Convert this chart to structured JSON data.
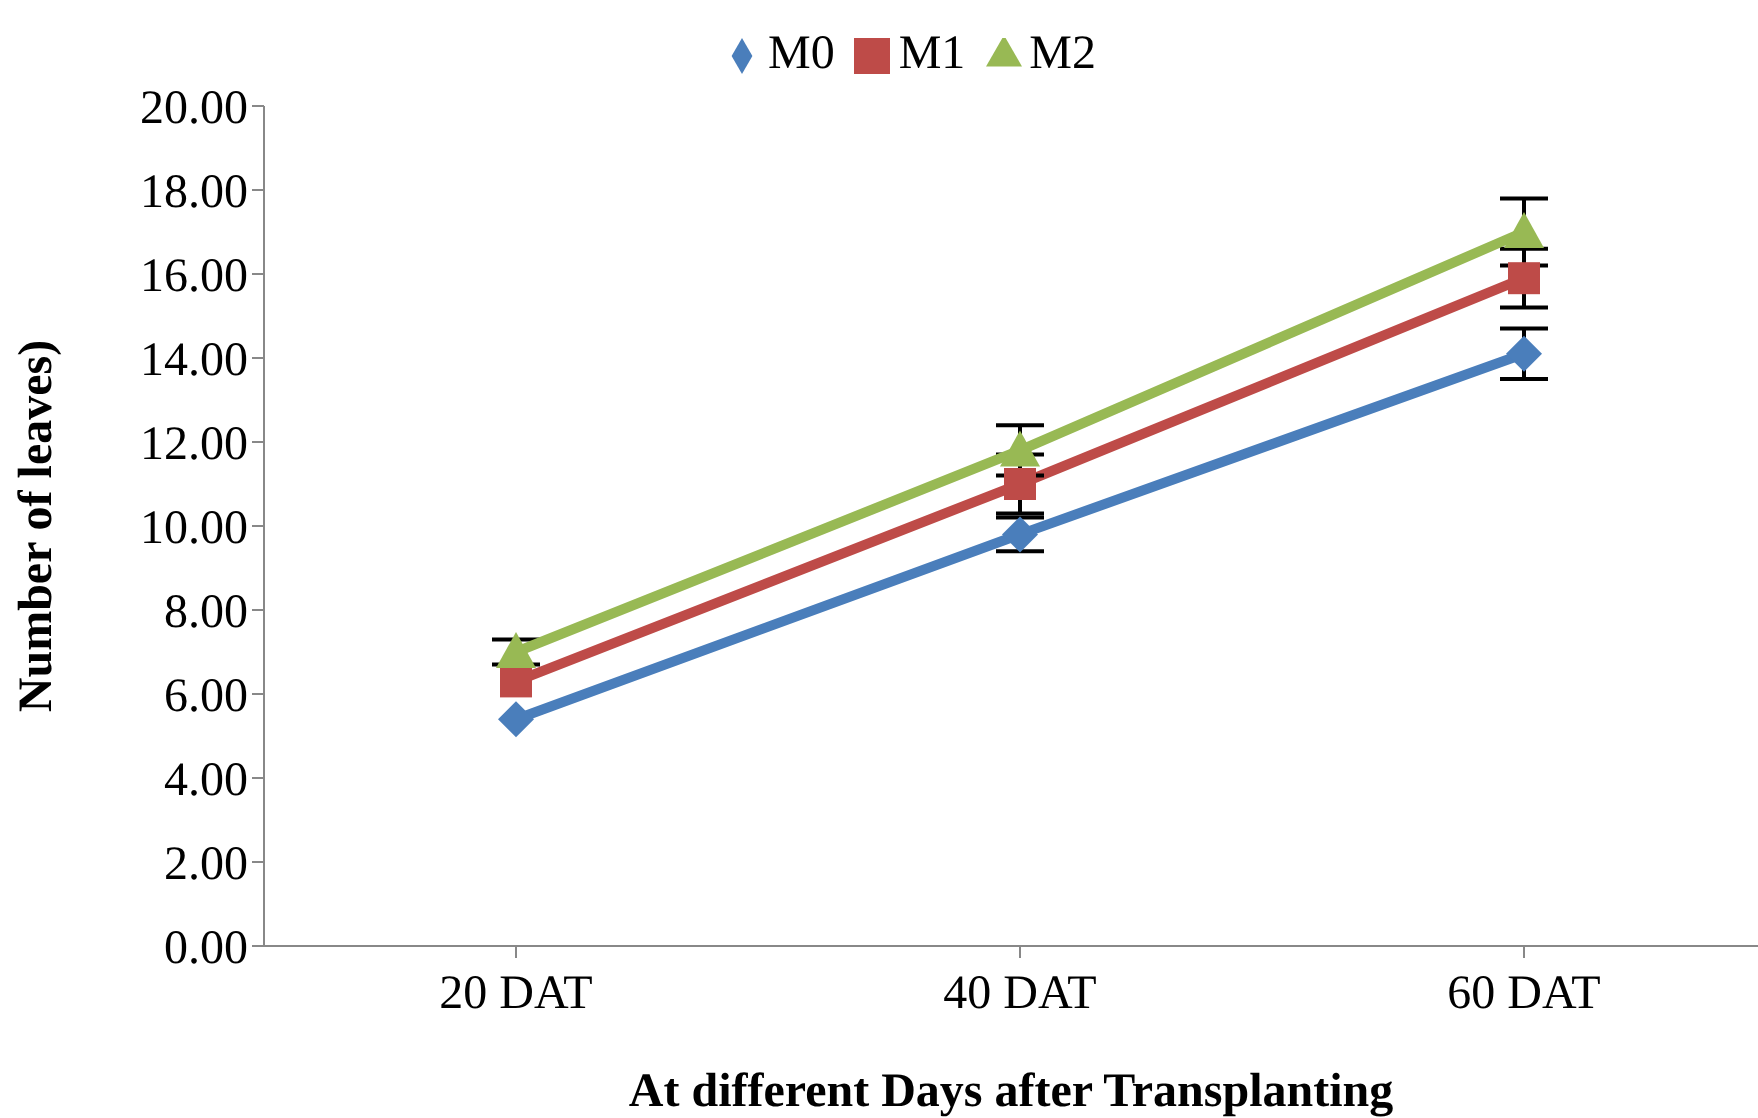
{
  "chart_data": {
    "type": "line",
    "xlabel": "At different Days after Transplanting",
    "ylabel": "Number of leaves)",
    "categories": [
      "20 DAT",
      "40 DAT",
      "60 DAT"
    ],
    "series": [
      {
        "name": "M0",
        "color": "#4a7ebb",
        "marker": "diamond",
        "values": [
          5.4,
          9.8,
          14.1
        ],
        "errors": [
          null,
          0.4,
          0.6
        ]
      },
      {
        "name": "M1",
        "color": "#be4b48",
        "marker": "square",
        "values": [
          6.3,
          11.0,
          15.9
        ],
        "errors": [
          null,
          0.7,
          0.7
        ]
      },
      {
        "name": "M2",
        "color": "#98b954",
        "marker": "triangle",
        "values": [
          7.0,
          11.8,
          17.0
        ],
        "errors": [
          0.3,
          0.6,
          0.8
        ]
      }
    ],
    "ylim": [
      0,
      20
    ],
    "yticks": [
      {
        "value": 0,
        "label": "0.00"
      },
      {
        "value": 2,
        "label": "2.00"
      },
      {
        "value": 4,
        "label": "4.00"
      },
      {
        "value": 6,
        "label": "6.00"
      },
      {
        "value": 8,
        "label": "8.00"
      },
      {
        "value": 10,
        "label": "10.00"
      },
      {
        "value": 12,
        "label": "12.00"
      },
      {
        "value": 14,
        "label": "14.00"
      },
      {
        "value": 16,
        "label": "16.00"
      },
      {
        "value": 18,
        "label": "18.00"
      },
      {
        "value": 20,
        "label": "20.00"
      }
    ],
    "grid": false,
    "legend": "top",
    "line_style": "solid"
  }
}
